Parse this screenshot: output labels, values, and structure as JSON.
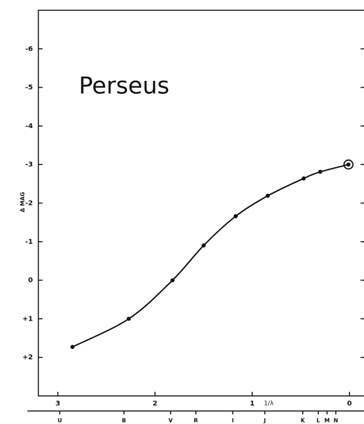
{
  "chart_data": {
    "type": "line",
    "title": "Perseus",
    "ylabel": "Δ MAG",
    "xlabel": "1/λ",
    "series": [
      {
        "color": "#111111",
        "x": [
          2.85,
          2.27,
          1.82,
          1.5,
          1.17,
          0.84,
          0.47,
          0.3,
          0.01
        ],
        "values": [
          1.73,
          1.0,
          0.0,
          -0.9,
          -1.66,
          -2.19,
          -2.64,
          -2.81,
          -3.0
        ]
      }
    ],
    "circled": [
      8
    ],
    "xlim": [
      -0.15,
      3.2
    ],
    "x_inverted": true,
    "xticks": [
      3,
      2,
      1,
      0
    ],
    "ylim": [
      -7,
      3
    ],
    "y_inverted": true,
    "yticks": [
      -6,
      -5,
      -4,
      -3,
      -2,
      -1,
      0,
      {
        "value": 1,
        "label": "+1"
      },
      {
        "value": 2,
        "label": "+2"
      }
    ],
    "bands": [
      {
        "label": "U",
        "x": 2.98
      },
      {
        "label": "B",
        "x": 2.32
      },
      {
        "label": "V",
        "x": 1.84
      },
      {
        "label": "R",
        "x": 1.58
      },
      {
        "label": "I",
        "x": 1.2
      },
      {
        "label": "J",
        "x": 0.87
      },
      {
        "label": "K",
        "x": 0.48
      },
      {
        "label": "L",
        "x": 0.32
      },
      {
        "label": "M",
        "x": 0.23
      },
      {
        "label": "N",
        "x": 0.14
      }
    ]
  }
}
